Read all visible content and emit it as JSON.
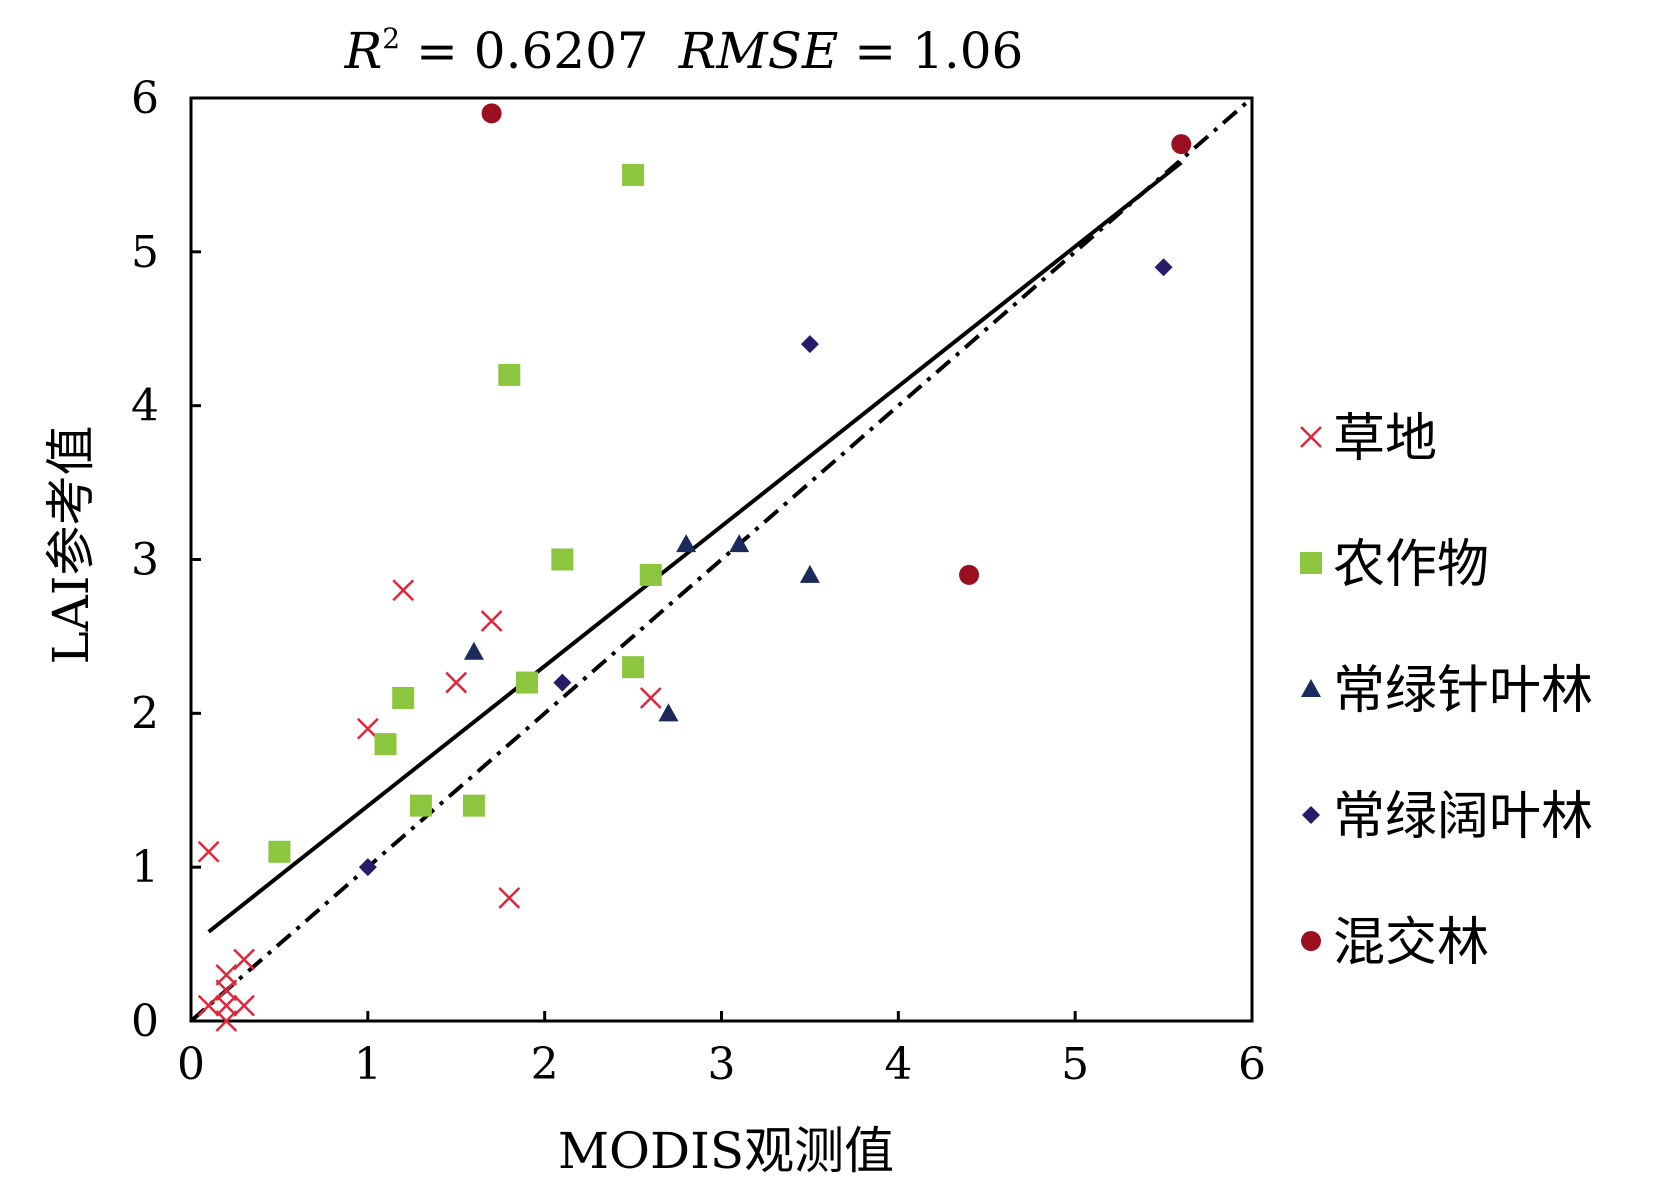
{
  "chart_data": {
    "type": "scatter",
    "title_parts": {
      "r_symbol": "R",
      "r_exponent": "2",
      "r_value": " = 0.6207",
      "rmse_symbol": "RMSE",
      "rmse_value": " = 1.06"
    },
    "title": "R2 = 0.6207  RMSE = 1.06",
    "xlabel": "MODIS观测值",
    "ylabel": "LAI参考值",
    "xlim": [
      0,
      6
    ],
    "ylim": [
      0,
      6
    ],
    "xticks": [
      "0",
      "1",
      "2",
      "3",
      "4",
      "5",
      "6"
    ],
    "yticks": [
      "0",
      "1",
      "2",
      "3",
      "4",
      "5",
      "6"
    ],
    "grid": false,
    "legend_position": "right",
    "colors": {
      "grassland": "#e0263a",
      "cropland": "#8cc63f",
      "evergreen_needleleaf": "#1a2a5a",
      "evergreen_broadleaf": "#2a1a6a",
      "mixed_forest": "#9b1020",
      "line": "#000000"
    },
    "series": [
      {
        "name": "草地",
        "marker": "x",
        "color": "#e0263a",
        "x": [
          0.1,
          0.2,
          0.2,
          0.3,
          0.3,
          0.2,
          0.2,
          0.1,
          1.0,
          1.2,
          1.5,
          1.7,
          2.6,
          1.8
        ],
        "y": [
          1.1,
          0.0,
          0.1,
          0.1,
          0.4,
          0.3,
          0.2,
          0.1,
          1.9,
          2.8,
          2.2,
          2.6,
          2.1,
          0.8
        ]
      },
      {
        "name": "农作物",
        "marker": "square",
        "color": "#8cc63f",
        "x": [
          0.5,
          1.1,
          1.2,
          1.3,
          1.6,
          1.8,
          1.9,
          2.1,
          2.5,
          2.5,
          2.6
        ],
        "y": [
          1.1,
          1.8,
          2.1,
          1.4,
          1.4,
          4.2,
          2.2,
          3.0,
          2.3,
          5.5,
          2.9
        ]
      },
      {
        "name": "常绿针叶林",
        "marker": "triangle",
        "color": "#1a2a5a",
        "x": [
          1.6,
          2.7,
          2.8,
          3.1,
          3.5
        ],
        "y": [
          2.4,
          2.0,
          3.1,
          3.1,
          2.9
        ]
      },
      {
        "name": "常绿阔叶林",
        "marker": "diamond",
        "color": "#2a1a6a",
        "x": [
          1.0,
          2.1,
          3.5,
          5.5
        ],
        "y": [
          1.0,
          2.2,
          4.4,
          4.9
        ]
      },
      {
        "name": "混交林",
        "marker": "circle",
        "color": "#9b1020",
        "x": [
          1.7,
          4.4,
          5.6
        ],
        "y": [
          5.9,
          2.9,
          5.7
        ]
      }
    ],
    "lines": [
      {
        "name": "fit",
        "style": "solid",
        "x": [
          0.1,
          5.6
        ],
        "y": [
          0.58,
          5.58
        ]
      },
      {
        "name": "1:1",
        "style": "dashdot",
        "x": [
          0.0,
          6.0
        ],
        "y": [
          0.0,
          6.0
        ]
      }
    ]
  }
}
